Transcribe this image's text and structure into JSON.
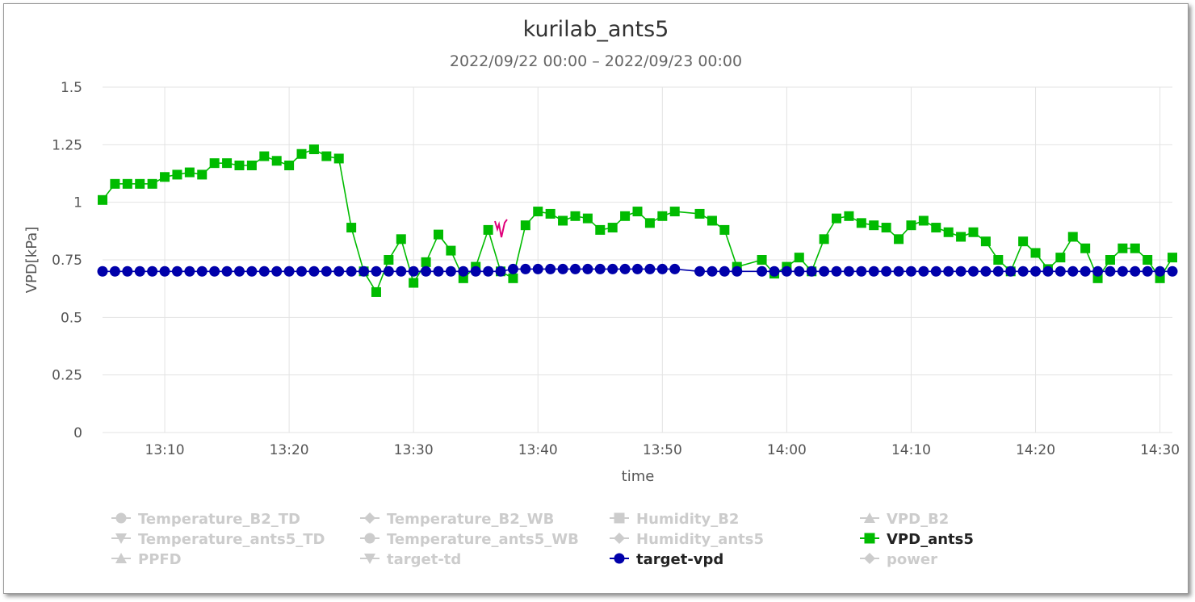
{
  "chart_data": {
    "type": "line",
    "title": "kurilab_ants5",
    "subtitle": "2022/09/22 00:00 – 2022/09/23 00:00",
    "xlabel": "time",
    "ylabel": "VPD[kPa]",
    "ylim": [
      0,
      1.5
    ],
    "yticks": [
      "0",
      "0.25",
      "0.5",
      "0.75",
      "1",
      "1.25",
      "1.5"
    ],
    "xlim": [
      "13:05",
      "14:31"
    ],
    "xticks": [
      "13:10",
      "13:20",
      "13:30",
      "13:40",
      "13:50",
      "14:00",
      "14:10",
      "14:20",
      "14:30"
    ],
    "grid": true,
    "legend_position": "bottom",
    "legend": [
      {
        "name": "Temperature_B2_TD",
        "marker": "circle",
        "visible": false
      },
      {
        "name": "Temperature_B2_WB",
        "marker": "diamond",
        "visible": false
      },
      {
        "name": "Humidity_B2",
        "marker": "square",
        "visible": false
      },
      {
        "name": "VPD_B2",
        "marker": "triangle",
        "visible": false
      },
      {
        "name": "Temperature_ants5_TD",
        "marker": "triangle-down",
        "visible": false
      },
      {
        "name": "Temperature_ants5_WB",
        "marker": "circle",
        "visible": false
      },
      {
        "name": "Humidity_ants5",
        "marker": "diamond",
        "visible": false
      },
      {
        "name": "VPD_ants5",
        "marker": "square",
        "visible": true,
        "color": "#00bb00"
      },
      {
        "name": "PPFD",
        "marker": "triangle",
        "visible": false
      },
      {
        "name": "target-td",
        "marker": "triangle-down",
        "visible": false
      },
      {
        "name": "target-vpd",
        "marker": "circle",
        "visible": true,
        "color": "#0000aa"
      },
      {
        "name": "power",
        "marker": "diamond",
        "visible": false
      }
    ],
    "series": [
      {
        "name": "VPD_ants5",
        "color": "#00bb00",
        "marker": "square",
        "x": [
          "13:05",
          "13:06",
          "13:07",
          "13:08",
          "13:09",
          "13:10",
          "13:11",
          "13:12",
          "13:13",
          "13:14",
          "13:15",
          "13:16",
          "13:17",
          "13:18",
          "13:19",
          "13:20",
          "13:21",
          "13:22",
          "13:23",
          "13:24",
          "13:25",
          "13:26",
          "13:27",
          "13:28",
          "13:29",
          "13:30",
          "13:31",
          "13:32",
          "13:33",
          "13:34",
          "13:35",
          "13:36",
          "13:37",
          "13:38",
          "13:39",
          "13:40",
          "13:41",
          "13:42",
          "13:43",
          "13:44",
          "13:45",
          "13:46",
          "13:47",
          "13:48",
          "13:49",
          "13:50",
          "13:51",
          "13:53",
          "13:54",
          "13:55",
          "13:56",
          "13:58",
          "13:59",
          "14:00",
          "14:01",
          "14:02",
          "14:03",
          "14:04",
          "14:05",
          "14:06",
          "14:07",
          "14:08",
          "14:09",
          "14:10",
          "14:11",
          "14:12",
          "14:13",
          "14:14",
          "14:15",
          "14:16",
          "14:17",
          "14:18",
          "14:19",
          "14:20",
          "14:21",
          "14:22",
          "14:23",
          "14:24",
          "14:25",
          "14:26",
          "14:27",
          "14:28",
          "14:29",
          "14:30",
          "14:31"
        ],
        "values": [
          1.01,
          1.08,
          1.08,
          1.08,
          1.08,
          1.11,
          1.12,
          1.13,
          1.12,
          1.17,
          1.17,
          1.16,
          1.16,
          1.2,
          1.18,
          1.16,
          1.21,
          1.23,
          1.2,
          1.19,
          0.89,
          0.7,
          0.61,
          0.75,
          0.84,
          0.65,
          0.74,
          0.86,
          0.79,
          0.67,
          0.72,
          0.88,
          0.7,
          0.67,
          0.9,
          0.96,
          0.95,
          0.92,
          0.94,
          0.93,
          0.88,
          0.89,
          0.94,
          0.96,
          0.91,
          0.94,
          0.96,
          0.95,
          0.92,
          0.88,
          0.72,
          0.75,
          0.69,
          0.72,
          0.76,
          0.7,
          0.84,
          0.93,
          0.94,
          0.91,
          0.9,
          0.89,
          0.84,
          0.9,
          0.92,
          0.89,
          0.87,
          0.85,
          0.87,
          0.83,
          0.75,
          0.7,
          0.83,
          0.78,
          0.71,
          0.76,
          0.85,
          0.8,
          0.67,
          0.75,
          0.8,
          0.8,
          0.75,
          0.67,
          0.76
        ]
      },
      {
        "name": "target-vpd",
        "color": "#0000aa",
        "marker": "circle",
        "x": [
          "13:05",
          "13:06",
          "13:07",
          "13:08",
          "13:09",
          "13:10",
          "13:11",
          "13:12",
          "13:13",
          "13:14",
          "13:15",
          "13:16",
          "13:17",
          "13:18",
          "13:19",
          "13:20",
          "13:21",
          "13:22",
          "13:23",
          "13:24",
          "13:25",
          "13:26",
          "13:27",
          "13:28",
          "13:29",
          "13:30",
          "13:31",
          "13:32",
          "13:33",
          "13:34",
          "13:35",
          "13:36",
          "13:37",
          "13:38",
          "13:39",
          "13:40",
          "13:41",
          "13:42",
          "13:43",
          "13:44",
          "13:45",
          "13:46",
          "13:47",
          "13:48",
          "13:49",
          "13:50",
          "13:51",
          "13:53",
          "13:54",
          "13:55",
          "13:56",
          "13:58",
          "13:59",
          "14:00",
          "14:01",
          "14:02",
          "14:03",
          "14:04",
          "14:05",
          "14:06",
          "14:07",
          "14:08",
          "14:09",
          "14:10",
          "14:11",
          "14:12",
          "14:13",
          "14:14",
          "14:15",
          "14:16",
          "14:17",
          "14:18",
          "14:19",
          "14:20",
          "14:21",
          "14:22",
          "14:23",
          "14:24",
          "14:25",
          "14:26",
          "14:27",
          "14:28",
          "14:29",
          "14:30",
          "14:31"
        ],
        "values": [
          0.7,
          0.7,
          0.7,
          0.7,
          0.7,
          0.7,
          0.7,
          0.7,
          0.7,
          0.7,
          0.7,
          0.7,
          0.7,
          0.7,
          0.7,
          0.7,
          0.7,
          0.7,
          0.7,
          0.7,
          0.7,
          0.7,
          0.7,
          0.7,
          0.7,
          0.7,
          0.7,
          0.7,
          0.7,
          0.7,
          0.7,
          0.7,
          0.7,
          0.71,
          0.71,
          0.71,
          0.71,
          0.71,
          0.71,
          0.71,
          0.71,
          0.71,
          0.71,
          0.71,
          0.71,
          0.71,
          0.71,
          0.7,
          0.7,
          0.7,
          0.7,
          0.7,
          0.7,
          0.7,
          0.7,
          0.7,
          0.7,
          0.7,
          0.7,
          0.7,
          0.7,
          0.7,
          0.7,
          0.7,
          0.7,
          0.7,
          0.7,
          0.7,
          0.7,
          0.7,
          0.7,
          0.7,
          0.7,
          0.7,
          0.7,
          0.7,
          0.7,
          0.7,
          0.7,
          0.7,
          0.7,
          0.7,
          0.7,
          0.7,
          0.7
        ]
      }
    ]
  }
}
